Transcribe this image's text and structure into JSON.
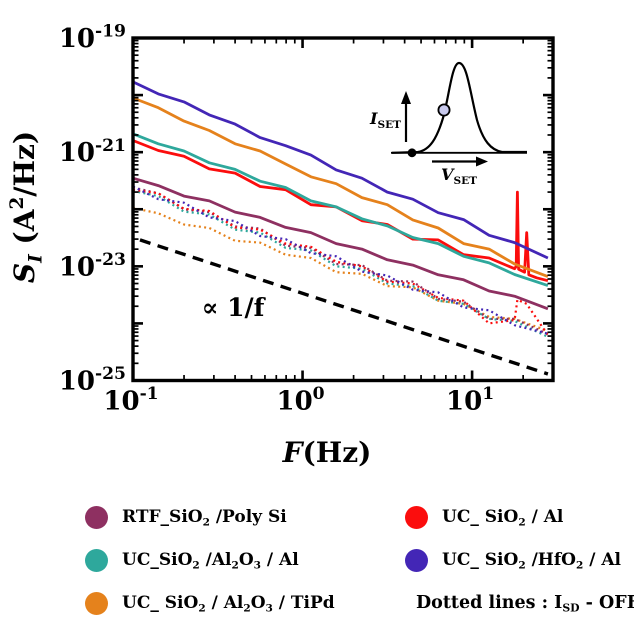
{
  "accent_colors": {
    "maroon": "#8E3061",
    "teal": "#2EA89C",
    "orange": "#E5821C",
    "red": "#FB0D0D",
    "blue": "#4326B6",
    "reference": "#000000",
    "inset_marker_fill": "#C9CAEE"
  },
  "axes": {
    "x_label_rich": [
      {
        "t": "F",
        "i": 1
      },
      {
        "t": "(Hz)"
      }
    ],
    "y_label_rich": [
      {
        "t": "S",
        "i": 1
      },
      {
        "t": "I",
        "sub": 1,
        "i": 1
      },
      {
        "t": " (A"
      },
      {
        "t": "2",
        "sup": 1
      },
      {
        "t": "/Hz)"
      }
    ],
    "x_ticks": [
      {
        "f": 0.1,
        "exp": "-1"
      },
      {
        "f": 1,
        "exp": "0"
      },
      {
        "f": 10,
        "exp": "1"
      }
    ],
    "y_ticks": [
      {
        "s": 1e-19,
        "exp": "-19"
      },
      {
        "s": 1e-21,
        "exp": "-21"
      },
      {
        "s": 1e-23,
        "exp": "-23"
      },
      {
        "s": 1e-25,
        "exp": "-25"
      }
    ]
  },
  "chart_data": {
    "type": "line",
    "x_scale": "log",
    "y_scale": "log",
    "xlim": [
      0.1,
      30
    ],
    "ylim": [
      1e-25,
      1e-19
    ],
    "xlabel": "F (Hz)",
    "ylabel": "S_I (A^2/Hz)",
    "annotation": "∝ 1/f",
    "legend_position": "below",
    "grid": false,
    "series": [
      {
        "name": "1/f reference",
        "color": "#000000",
        "style": "dashed",
        "width": 3.4,
        "f": [
          0.11,
          28
        ],
        "S": [
          2.9e-23,
          1.3e-25
        ]
      },
      {
        "name": "UC_SiO2/Al2O3/TiPd (ISD-OFF)",
        "color": "#E5821C",
        "style": "dotted",
        "width": 2.2,
        "f": [
          0.1,
          0.141,
          0.2,
          0.282,
          0.4,
          0.562,
          0.794,
          1.12,
          1.58,
          2.24,
          3.16,
          4.47,
          6.31,
          8.91,
          12.6,
          17.8,
          28
        ],
        "S": [
          1.05e-22,
          8.5e-23,
          5.4e-23,
          4.7e-23,
          2.8e-23,
          2.6e-23,
          1.6e-23,
          1.4e-23,
          7.9e-24,
          7.4e-24,
          4.5e-24,
          4.3e-24,
          2.5e-24,
          2.2e-24,
          1.3e-24,
          1.2e-24,
          7.4e-25
        ]
      },
      {
        "name": "RTF_SiO2/Poly Si (ISD-OFF)",
        "color": "#8E3061",
        "style": "dotted",
        "width": 2.2,
        "f": [
          0.1,
          0.141,
          0.2,
          0.282,
          0.4,
          0.562,
          0.794,
          1.12,
          1.58,
          2.24,
          3.16,
          4.47,
          6.31,
          8.91,
          12.6,
          17.8,
          28
        ],
        "S": [
          2.4e-22,
          1.9e-22,
          1e-22,
          8.9e-23,
          5e-23,
          4.6e-23,
          2.3e-23,
          2.1e-23,
          1.1e-23,
          1.05e-23,
          5.6e-24,
          5.4e-24,
          2.7e-24,
          2.4e-24,
          1.2e-24,
          1.2e-24,
          6.5e-25
        ]
      },
      {
        "name": "UC_SiO2/Al2O3/Al (ISD-OFF)",
        "color": "#2EA89C",
        "style": "dotted",
        "width": 2.2,
        "f": [
          0.1,
          0.141,
          0.2,
          0.282,
          0.4,
          0.562,
          0.794,
          1.12,
          1.58,
          2.24,
          3.16,
          4.47,
          6.31,
          8.91,
          12.6,
          17.8,
          28
        ],
        "S": [
          2.1e-22,
          1.7e-22,
          9.1e-23,
          8.1e-23,
          4.4e-23,
          3.9e-23,
          2.1e-23,
          1.9e-23,
          1e-23,
          9.1e-24,
          5e-24,
          4.5e-24,
          2.5e-24,
          2.2e-24,
          1.2e-24,
          1.1e-24,
          5.8e-25
        ]
      },
      {
        "name": "UC_SiO2/Al (ISD-OFF)",
        "color": "#FB0D0D",
        "style": "dotted",
        "width": 2.2,
        "f": [
          0.1,
          0.141,
          0.2,
          0.282,
          0.4,
          0.562,
          0.794,
          1.12,
          1.58,
          2.24,
          3.16,
          4.47,
          6.31,
          8.91,
          12.6,
          17.8,
          18.5,
          21,
          28
        ],
        "S": [
          2.2e-22,
          1.9e-22,
          1.02e-22,
          9.3e-23,
          4.8e-23,
          4.4e-23,
          2.5e-23,
          2.2e-23,
          1.2e-23,
          1e-23,
          5.4e-24,
          5e-24,
          2.8e-24,
          2.5e-24,
          1e-24,
          1.15e-24,
          2.6e-24,
          2.2e-24,
          6.2e-25
        ]
      },
      {
        "name": "UC_SiO2/HfO2/Al (ISD-OFF)",
        "color": "#4326B6",
        "style": "dotted",
        "width": 2.2,
        "f": [
          0.1,
          0.141,
          0.2,
          0.282,
          0.4,
          0.562,
          0.794,
          1.12,
          1.58,
          2.24,
          3.16,
          4.47,
          6.31,
          8.91,
          12.6,
          17.8,
          28
        ],
        "S": [
          2.5e-22,
          1.5e-22,
          1.3e-22,
          7.2e-23,
          6.2e-23,
          3.4e-23,
          3e-23,
          1.7e-23,
          1.5e-23,
          8.1e-24,
          6.9e-24,
          3.9e-24,
          3.5e-24,
          1.9e-24,
          1.7e-24,
          9.3e-25,
          6.6e-25
        ]
      },
      {
        "name": "RTF_SiO2/Poly Si (ON)",
        "color": "#8E3061",
        "style": "solid",
        "width": 2.8,
        "f": [
          0.1,
          0.141,
          0.2,
          0.282,
          0.4,
          0.562,
          0.794,
          1.12,
          1.58,
          2.24,
          3.16,
          4.47,
          6.31,
          8.91,
          12.6,
          17.8,
          28
        ],
        "S": [
          3.5e-22,
          2.6e-22,
          1.7e-22,
          1.4e-22,
          8.9e-23,
          7.2e-23,
          4.8e-23,
          3.9e-23,
          2.5e-23,
          2e-23,
          1.3e-23,
          1.05e-23,
          7.1e-24,
          5.8e-24,
          3.7e-24,
          3e-24,
          1.8e-24
        ]
      },
      {
        "name": "UC_SiO2/Al (ON)",
        "color": "#FB0D0D",
        "style": "solid",
        "width": 2.8,
        "f": [
          0.1,
          0.141,
          0.2,
          0.282,
          0.4,
          0.562,
          0.794,
          1.12,
          1.58,
          2.24,
          3.16,
          4.47,
          6.31,
          8.91,
          12.6,
          17.8,
          18.2,
          18.5,
          18.8,
          20.4,
          21.0,
          21.6,
          24,
          28
        ],
        "S": [
          1.6e-21,
          1.07e-21,
          8.5e-22,
          5.1e-22,
          4.3e-22,
          2.5e-22,
          2.2e-22,
          1.2e-22,
          1.1e-22,
          6.3e-23,
          5.4e-23,
          3e-23,
          2.9e-23,
          1.6e-23,
          1.4e-23,
          9.1e-24,
          1e-23,
          2e-22,
          8.9e-24,
          7.9e-24,
          3.9e-23,
          7.1e-24,
          6.3e-24,
          5.6e-24
        ]
      },
      {
        "name": "UC_SiO2/Al2O3/Al (ON)",
        "color": "#2EA89C",
        "style": "solid",
        "width": 2.8,
        "f": [
          0.1,
          0.141,
          0.2,
          0.282,
          0.4,
          0.562,
          0.794,
          1.12,
          1.58,
          2.24,
          3.16,
          4.47,
          6.31,
          8.91,
          12.6,
          17.8,
          28
        ],
        "S": [
          2.1e-21,
          1.4e-21,
          1.05e-21,
          6.5e-22,
          5e-22,
          3.1e-22,
          2.4e-22,
          1.4e-22,
          1.1e-22,
          6.8e-23,
          5.1e-23,
          3.2e-23,
          2.5e-23,
          1.5e-23,
          1.15e-23,
          7.2e-24,
          4.6e-24
        ]
      },
      {
        "name": "UC_SiO2/Al2O3/TiPd (ON)",
        "color": "#E5821C",
        "style": "solid",
        "width": 2.8,
        "f": [
          0.1,
          0.141,
          0.2,
          0.282,
          0.4,
          0.562,
          0.794,
          1.12,
          1.58,
          2.24,
          3.16,
          4.47,
          6.31,
          8.91,
          12.6,
          17.8,
          28
        ],
        "S": [
          8.9e-21,
          6e-21,
          3.5e-21,
          2.4e-21,
          1.4e-21,
          1.05e-21,
          6.2e-22,
          3.7e-22,
          2.8e-22,
          1.6e-22,
          1.2e-22,
          6.5e-23,
          4.7e-23,
          2.5e-23,
          2e-23,
          1.1e-23,
          6.6e-24
        ]
      },
      {
        "name": "UC_SiO2/HfO2/Al (ON)",
        "color": "#4326B6",
        "style": "solid",
        "width": 2.8,
        "f": [
          0.1,
          0.141,
          0.2,
          0.282,
          0.4,
          0.562,
          0.794,
          1.12,
          1.58,
          2.24,
          3.16,
          4.47,
          6.31,
          8.91,
          12.6,
          17.8,
          28
        ],
        "S": [
          1.7e-20,
          1.05e-20,
          7.6e-21,
          4.5e-21,
          3.1e-21,
          1.8e-21,
          1.3e-21,
          8.9e-22,
          4.9e-22,
          3.5e-22,
          2e-22,
          1.5e-22,
          8.7e-23,
          6.6e-23,
          3.5e-23,
          2.6e-23,
          1.4e-23
        ]
      }
    ],
    "inset": {
      "description": "SET Coulomb peak sketch: ISET vs VSET with bias points",
      "y_label_rich": [
        {
          "t": "I",
          "i": 1
        },
        {
          "t": "SET",
          "sub": 1
        }
      ],
      "x_label_rich": [
        {
          "t": "V",
          "i": 1
        },
        {
          "t": "SET",
          "sub": 1
        }
      ],
      "marker_fill": "#C9CAEE"
    }
  },
  "legend": {
    "left": [
      {
        "color": "#8E3061",
        "label": [
          {
            "t": "RTF_SiO"
          },
          {
            "t": "2",
            "sub": 1
          },
          {
            "t": " /Poly Si"
          }
        ]
      },
      {
        "color": "#2EA89C",
        "label": [
          {
            "t": "UC_SiO"
          },
          {
            "t": "2",
            "sub": 1
          },
          {
            "t": " /Al"
          },
          {
            "t": "2",
            "sub": 1
          },
          {
            "t": "O"
          },
          {
            "t": "3",
            "sub": 1
          },
          {
            "t": " / Al"
          }
        ]
      },
      {
        "color": "#E5821C",
        "label": [
          {
            "t": "UC_ SiO"
          },
          {
            "t": "2",
            "sub": 1
          },
          {
            "t": " / Al"
          },
          {
            "t": "2",
            "sub": 1
          },
          {
            "t": "O"
          },
          {
            "t": "3",
            "sub": 1
          },
          {
            "t": " / TiPd"
          }
        ]
      }
    ],
    "right": [
      {
        "color": "#FB0D0D",
        "label": [
          {
            "t": "UC_ SiO"
          },
          {
            "t": "2",
            "sub": 1
          },
          {
            "t": " / Al"
          }
        ]
      },
      {
        "color": "#4326B6",
        "label": [
          {
            "t": "UC_ SiO"
          },
          {
            "t": "2",
            "sub": 1
          },
          {
            "t": " /HfO"
          },
          {
            "t": "2",
            "sub": 1
          },
          {
            "t": " / Al"
          }
        ]
      }
    ],
    "note": [
      {
        "t": "Dotted lines : I"
      },
      {
        "t": "SD",
        "sub": 1
      },
      {
        "t": " - OFF"
      }
    ]
  }
}
